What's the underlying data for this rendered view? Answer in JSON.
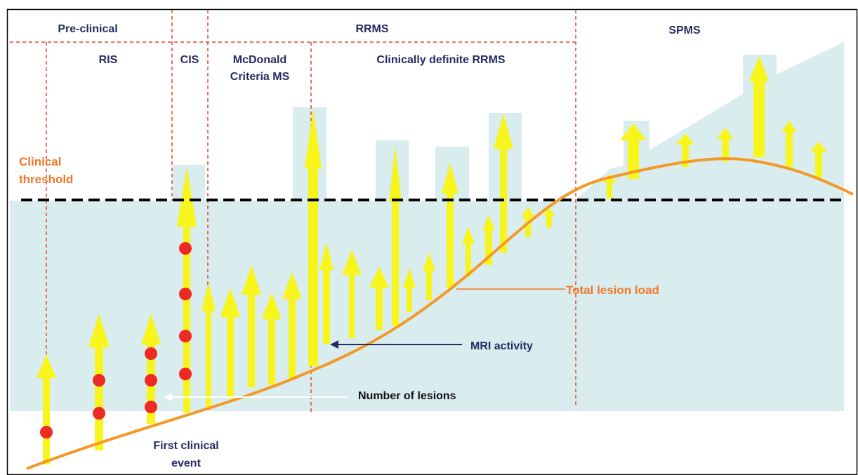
{
  "phases": {
    "pre_clinical": "Pre-clinical",
    "rrms": "RRMS",
    "spms": "SPMS",
    "ris": "RIS",
    "cis": "CIS",
    "mcdonald_line1": "McDonald",
    "mcdonald_line2": "Criteria MS",
    "clinically_definite": "Clinically definite RRMS"
  },
  "threshold": {
    "line1": "Clinical",
    "line2": "threshold"
  },
  "annotations": {
    "total_lesion_load": "Total lesion load",
    "mri_activity": "MRI activity",
    "number_of_lesions": "Number of lesions",
    "first_event_line1": "First clinical",
    "first_event_line2": "event"
  },
  "colors": {
    "background_fill": "#d9ecee",
    "arrow": "#f7f51c",
    "lesion_dot": "#ee2a24",
    "lesion_load_curve": "#f39a26",
    "phase_divider": "#e8442c",
    "navy_text": "#262b63",
    "orange_text": "#f07828"
  }
}
